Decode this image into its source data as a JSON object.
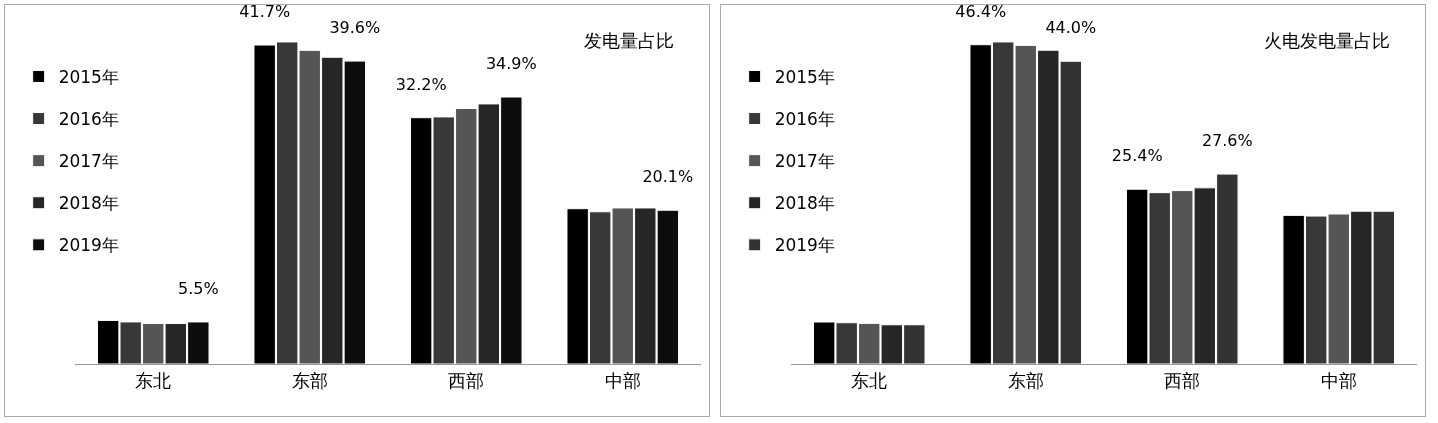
{
  "chart_data": [
    {
      "type": "bar",
      "title": "发电量占比",
      "categories": [
        "东北",
        "东部",
        "西部",
        "中部"
      ],
      "legend": "top left",
      "series": [
        {
          "name": "2015年",
          "color": "#000000",
          "values": [
            5.7,
            41.7,
            32.2,
            20.3
          ],
          "value_labels": [
            null,
            "41.7%",
            "32.2%",
            null
          ]
        },
        {
          "name": "2016年",
          "color": "#383838",
          "values": [
            5.5,
            42.1,
            32.3,
            19.9
          ]
        },
        {
          "name": "2017年",
          "color": "#555555",
          "values": [
            5.3,
            41.0,
            33.4,
            20.4
          ]
        },
        {
          "name": "2018年",
          "color": "#262626",
          "values": [
            5.3,
            40.1,
            34.0,
            20.4
          ]
        },
        {
          "name": "2019年",
          "color": "#0d0d0d",
          "values": [
            5.5,
            39.6,
            34.9,
            20.1
          ],
          "value_labels": [
            "5.5%",
            "39.6%",
            "34.9%",
            "20.1%"
          ]
        }
      ]
    },
    {
      "type": "bar",
      "title": "火电发电量占比",
      "categories": [
        "东北",
        "东部",
        "西部",
        "中部"
      ],
      "legend": "top left",
      "series": [
        {
          "name": "2015年",
          "color": "#000000",
          "values": [
            6.1,
            46.4,
            25.4,
            21.6
          ],
          "value_labels": [
            null,
            "46.4%",
            "25.4%",
            null
          ]
        },
        {
          "name": "2016年",
          "color": "#383838",
          "values": [
            6.0,
            46.8,
            24.9,
            21.5
          ]
        },
        {
          "name": "2017年",
          "color": "#555555",
          "values": [
            5.9,
            46.3,
            25.2,
            21.8
          ]
        },
        {
          "name": "2018年",
          "color": "#262626",
          "values": [
            5.7,
            45.6,
            25.6,
            22.2
          ]
        },
        {
          "name": "2019年",
          "color": "#333333",
          "values": [
            5.7,
            44.0,
            27.6,
            22.2
          ],
          "value_labels": [
            null,
            "44.0%",
            "27.6%",
            null
          ]
        }
      ]
    }
  ]
}
